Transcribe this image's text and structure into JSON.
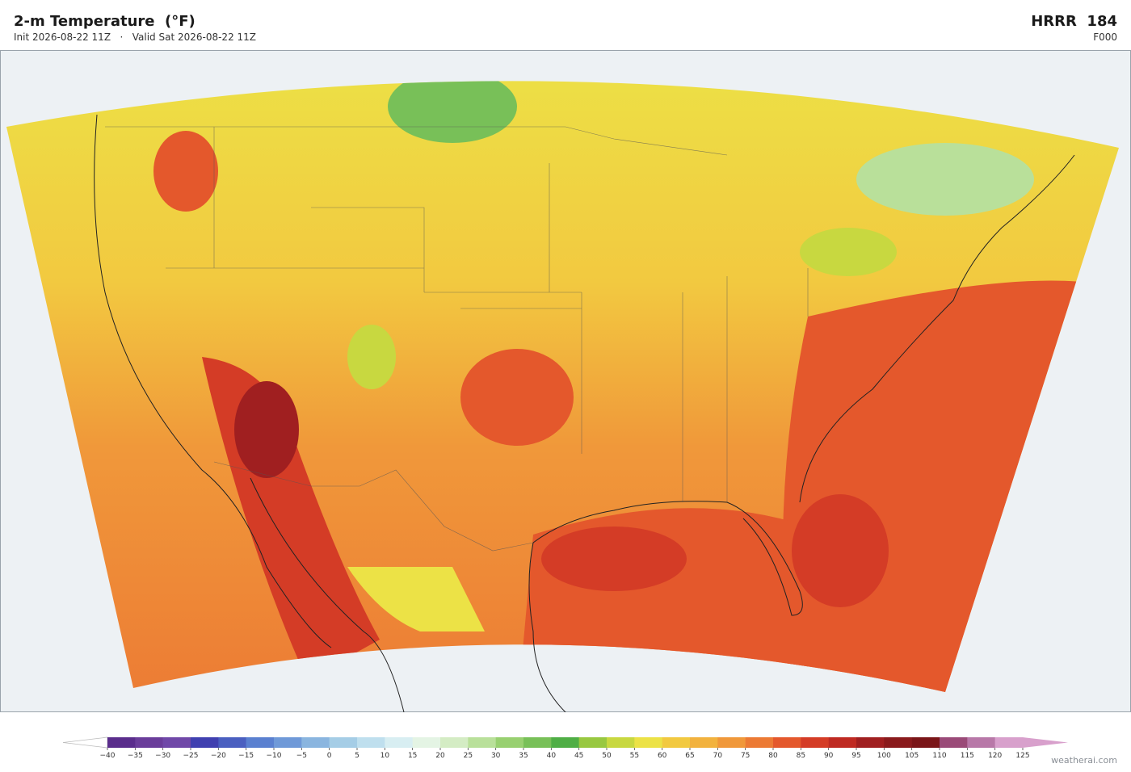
{
  "header": {
    "title": "2-m Temperature  (°F)",
    "subtitle": "Init 2026-08-22 11Z   ·   Valid Sat 2026-08-22 11Z",
    "model": "HRRR  184",
    "forecast_hour": "F000"
  },
  "colorbar": {
    "ticks": [
      {
        "value": -40,
        "label": "−40"
      },
      {
        "value": -35,
        "label": "−35"
      },
      {
        "value": -30,
        "label": "−30"
      },
      {
        "value": -25,
        "label": "−25"
      },
      {
        "value": -20,
        "label": "−20"
      },
      {
        "value": -15,
        "label": "−15"
      },
      {
        "value": -10,
        "label": "−10"
      },
      {
        "value": -5,
        "label": "−5"
      },
      0,
      5,
      10,
      15,
      20,
      25,
      30,
      35,
      40,
      45,
      50,
      55,
      60,
      65,
      70,
      75,
      80,
      85,
      90,
      95,
      100,
      105,
      110,
      115,
      120,
      125
    ],
    "colors": [
      "#5a2d8c",
      "#6a3d9a",
      "#7048a8",
      "#4040b0",
      "#4a5fc0",
      "#5a80d0",
      "#6f99d8",
      "#8ab5df",
      "#a5cde6",
      "#bfdfee",
      "#d8eef2",
      "#e4f4e4",
      "#d4ecc4",
      "#b9e09a",
      "#98d070",
      "#78c058",
      "#4fae45",
      "#98c840",
      "#c8d840",
      "#ece246",
      "#f2c940",
      "#f2b23e",
      "#f0983a",
      "#ec7a34",
      "#e4582c",
      "#d43c26",
      "#bf2a22",
      "#a01f20",
      "#8a1a1c",
      "#7a1518",
      "#9a4a78",
      "#b878a8",
      "#d8a0cc"
    ],
    "under_color": "#ffffff",
    "over_color": "#d8a0cc"
  },
  "credit": "weatherai.com"
}
